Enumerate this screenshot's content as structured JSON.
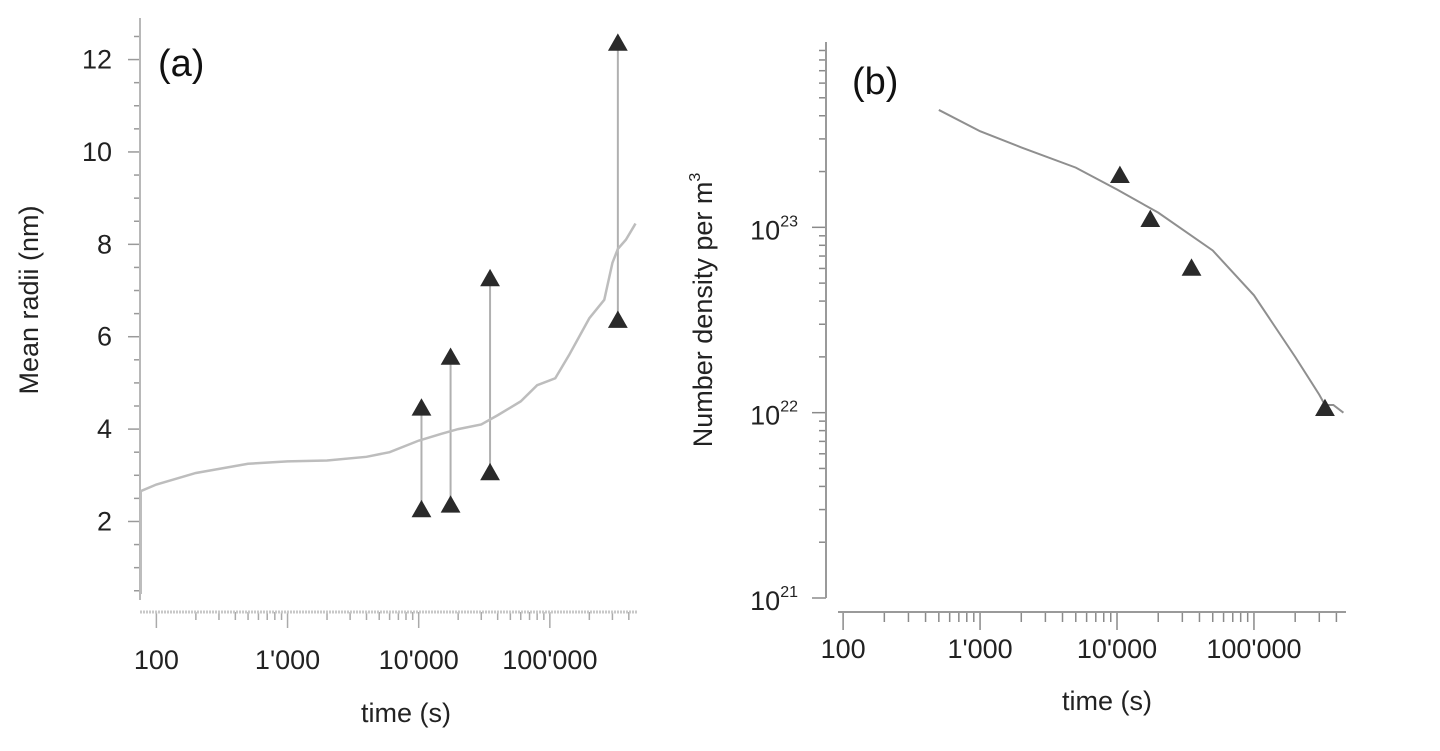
{
  "chart_data": [
    {
      "type": "scatter",
      "panel_label": "(a)",
      "xlabel": "time (s)",
      "ylabel": "Mean radii  (nm)",
      "x_scale": "log",
      "xlim": [
        75,
        470000
      ],
      "ylim": [
        0.3,
        12.9
      ],
      "xticks": [
        100,
        1000,
        10000,
        100000
      ],
      "xtick_labels": [
        "100",
        "1'000",
        "10'000",
        "100'000"
      ],
      "yticks": [
        2,
        4,
        6,
        8,
        10,
        12
      ],
      "ytick_labels": [
        "2",
        "4",
        "6",
        "8",
        "10",
        "12"
      ],
      "series": [
        {
          "kind": "line",
          "x": [
            75,
            100,
            200,
            500,
            1000,
            2000,
            4000,
            6000,
            10000,
            15000,
            20000,
            30000,
            40000,
            60000,
            80000,
            110000,
            140000,
            200000,
            260000,
            300000,
            330000,
            380000,
            450000
          ],
          "y": [
            2.65,
            2.8,
            3.05,
            3.25,
            3.3,
            3.32,
            3.4,
            3.5,
            3.75,
            3.9,
            4.0,
            4.1,
            4.3,
            4.6,
            4.95,
            5.1,
            5.6,
            6.4,
            6.8,
            7.6,
            7.9,
            8.1,
            8.45
          ]
        },
        {
          "kind": "markers",
          "x": [
            10500,
            10500,
            17500,
            17500,
            35000,
            35000,
            330000,
            330000
          ],
          "y": [
            4.45,
            2.25,
            5.55,
            2.35,
            7.25,
            3.05,
            12.35,
            6.35
          ]
        }
      ],
      "range_bars": [
        {
          "x": 10500,
          "low": 2.25,
          "high": 4.45
        },
        {
          "x": 17500,
          "low": 2.35,
          "high": 5.55
        },
        {
          "x": 35000,
          "low": 3.05,
          "high": 7.25
        },
        {
          "x": 330000,
          "low": 6.35,
          "high": 12.35
        }
      ]
    },
    {
      "type": "scatter",
      "panel_label": "(b)",
      "xlabel": "time (s)",
      "ylabel": "Number density per m",
      "ylabel_sup": "3",
      "x_scale": "log",
      "y_scale": "log",
      "xlim": [
        75,
        470000
      ],
      "ylim": [
        1e+21,
        1e+24
      ],
      "xticks": [
        100,
        1000,
        10000,
        100000
      ],
      "xtick_labels": [
        "100",
        "1'000",
        "10'000",
        "100'000"
      ],
      "yticks": [
        1e+21,
        1e+22,
        1e+23
      ],
      "ytick_labels": [
        {
          "base": "10",
          "exp": "21"
        },
        {
          "base": "10",
          "exp": "22"
        },
        {
          "base": "10",
          "exp": "23"
        }
      ],
      "series": [
        {
          "kind": "line",
          "x": [
            500,
            1000,
            2000,
            5000,
            10000,
            20000,
            50000,
            100000,
            200000,
            300000,
            330000,
            380000,
            450000
          ],
          "y": [
            4.3e+23,
            3.3e+23,
            2.7e+23,
            2.1e+23,
            1.6e+23,
            1.2e+23,
            7.5e+22,
            4.3e+22,
            2e+22,
            1.25e+22,
            1.1e+22,
            1.1e+22,
            1e+22
          ]
        },
        {
          "kind": "markers",
          "x": [
            10500,
            17500,
            35000,
            330000
          ],
          "y": [
            1.9e+23,
            1.1e+23,
            6e+22,
            1.05e+22
          ]
        }
      ]
    }
  ]
}
